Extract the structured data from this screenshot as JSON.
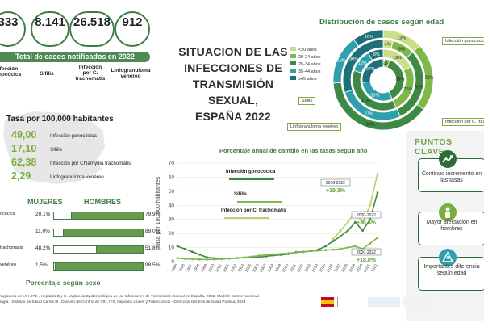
{
  "kpis": [
    {
      "value": "333",
      "label": "Infección\ngonocócica"
    },
    {
      "value": "8.141",
      "label": "Sífilis"
    },
    {
      "value": "26.518",
      "label": "Infección\npor C.\ntrachomatis"
    },
    {
      "value": "912",
      "label": "Linfogranuloma\nvenéreo"
    }
  ],
  "total_label": "Total de casos notificados en 2022",
  "title_lines": [
    "SITUACION DE LAS",
    "INFECCIONES DE",
    "TRANSMISIÓN SEXUAL,",
    "ESPAÑA 2022"
  ],
  "rates": {
    "heading": "Tasa por 100,000 habitantes",
    "items": [
      {
        "value": "49,00",
        "label": "Infección gonocócica"
      },
      {
        "value": "17,10",
        "label": "Sífilis"
      },
      {
        "value": "62,38",
        "label": "Infección por Chlamydia trachomatis"
      },
      {
        "value": "2,29",
        "label": "Linfogranuloma venéreo"
      }
    ]
  },
  "sex": {
    "women_label": "MUJERES",
    "men_label": "HOMBRES",
    "caption": "Porcentaje según sexo",
    "rows": [
      {
        "label": "ocócica",
        "women": 20.1,
        "men": 79.9,
        "women_text": "20,1%",
        "men_text": "79,9%"
      },
      {
        "label": "",
        "women": 11.0,
        "men": 89.0,
        "women_text": "11,0%",
        "men_text": "89,0%"
      },
      {
        "label": "trachomatis",
        "women": 48.2,
        "men": 51.8,
        "women_text": "48,2%",
        "men_text": "51,8%"
      },
      {
        "label": "venéreo",
        "women": 1.5,
        "men": 98.5,
        "women_text": "1,5%",
        "men_text": "98,5%"
      }
    ]
  },
  "donut": {
    "title": "Distribución de casos según edad",
    "legend": [
      "<20 años",
      "20-24 años",
      "25-34 años",
      "35-44 años",
      "≥45 años"
    ],
    "colors": [
      "#c9de8a",
      "#7fb84a",
      "#3e8a45",
      "#2f9fae",
      "#1e6f7a"
    ],
    "rings": [
      {
        "name": "Infección gonocócica",
        "values": [
          13,
          22,
          39,
          16,
          10
        ],
        "labels": [
          "13%",
          "22%",
          "39%",
          "16%",
          "10%"
        ]
      },
      {
        "name": "Sífilis",
        "values": [
          4,
          9,
          30,
          27,
          30
        ],
        "labels": [
          "4%",
          "9%",
          "30%",
          "27%",
          "30%"
        ]
      },
      {
        "name": "Infección por C. trachomatis",
        "values": [
          18,
          25,
          37,
          12,
          8
        ],
        "labels": [
          "18%",
          "25%",
          "37%",
          "12%",
          "8%"
        ]
      },
      {
        "name": "Linfogranuloma venéreo",
        "values": [
          1,
          4,
          38,
          30,
          27
        ],
        "labels": [
          "1%",
          "4%",
          "38%",
          "30%",
          "27%"
        ]
      }
    ],
    "callouts": [
      "Infección gonocócica",
      "Sífilis",
      "Linfogranuloma venéreo",
      "Infección por C. trachoma"
    ]
  },
  "chart_data": {
    "type": "line",
    "title": "Porcentaje anual de cambio en las tasas según año",
    "ylabel": "Tasa por 100.000 habitantes",
    "ylim": [
      0,
      70
    ],
    "yticks": [
      0,
      10,
      20,
      30,
      40,
      50,
      60,
      70
    ],
    "x": [
      1995,
      1996,
      1997,
      1998,
      1999,
      2000,
      2001,
      2002,
      2003,
      2004,
      2005,
      2006,
      2007,
      2008,
      2009,
      2010,
      2011,
      2012,
      2013,
      2014,
      2015,
      2016,
      2017,
      2018,
      2019,
      2020,
      2021,
      2022
    ],
    "series": [
      {
        "name": "Infección gonocócica",
        "color": "#3e8a45",
        "values": [
          11,
          9,
          7,
          5,
          3,
          2.5,
          2.2,
          2.2,
          2.5,
          2.8,
          3,
          3.2,
          3.8,
          4.5,
          4.8,
          5.5,
          6.8,
          7,
          7.5,
          8.5,
          11,
          14.5,
          18,
          22,
          28,
          22,
          30,
          49
        ]
      },
      {
        "name": "Sífilis",
        "color": "#7fb84a",
        "values": [
          2.5,
          2,
          1.8,
          1.6,
          1.5,
          1.6,
          1.8,
          2.2,
          2.6,
          3,
          3.6,
          4.2,
          4.9,
          5.2,
          5.5,
          6,
          6.5,
          7,
          7.5,
          7.8,
          8.2,
          8.5,
          9,
          10,
          11,
          9,
          13,
          17
        ]
      },
      {
        "name": "Infección por C. trachomatis",
        "color": "#b5d36a",
        "values": [
          null,
          null,
          null,
          null,
          null,
          null,
          null,
          null,
          null,
          null,
          null,
          null,
          null,
          null,
          null,
          null,
          null,
          null,
          null,
          null,
          null,
          16,
          22,
          28,
          35,
          28,
          40,
          62.38
        ]
      }
    ],
    "annotations": [
      {
        "period": "2016-2022",
        "change": "+19,3%"
      },
      {
        "period": "2020-2022",
        "change": "+30,4%"
      },
      {
        "period": "2020-2022",
        "change": "+18,0%"
      }
    ]
  },
  "key_points": {
    "title": "PUNTOS CLAVE",
    "items": [
      {
        "icon": "trend-up-icon",
        "text": "Continuo incremento en las tasas"
      },
      {
        "icon": "male-icon",
        "text": "Mayor afectación en hombres"
      },
      {
        "icon": "warning-icon",
        "text": "Importantes diferencia según edad"
      }
    ]
  },
  "footer": [
    "Vigilancia de VIH, ITS , Hepatitis B y C. Vigilancia Epidemiológica de las Infecciones de Transmisión Sexual en España, 2022. Madrid: Centro Nacional",
    "logía - Instituto de Salud Carlos III / División de Control de VIH, ITS, Hepatitis virales y Tuberculosis - Dirección General de Salud Pública; 2024"
  ]
}
